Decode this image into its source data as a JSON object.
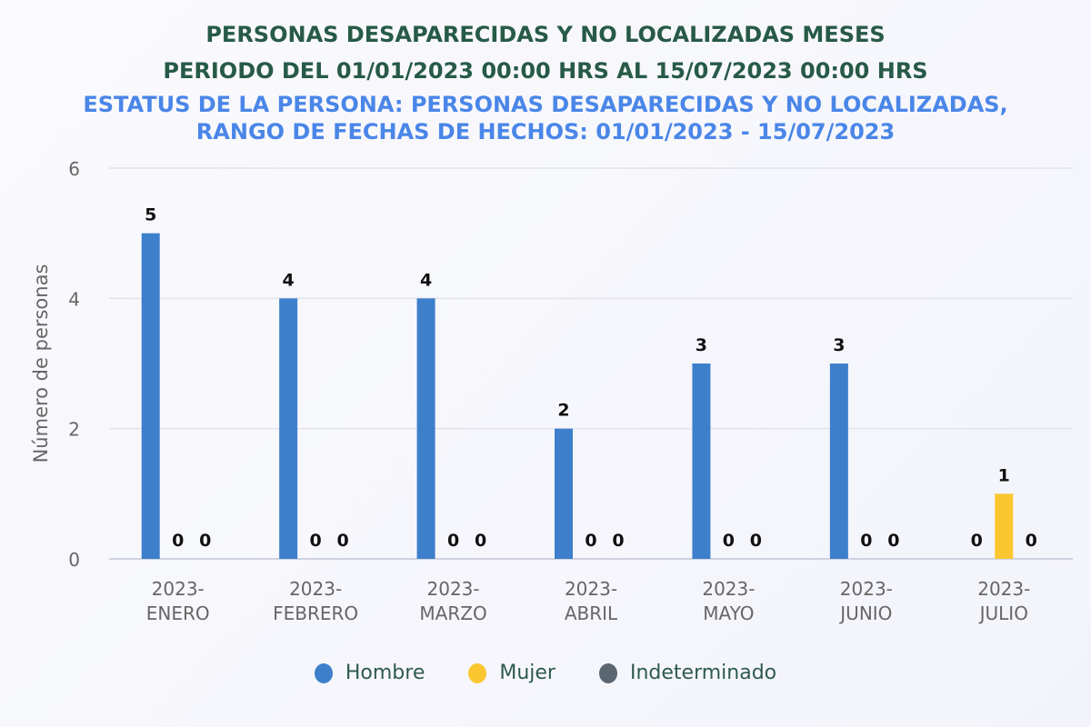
{
  "title_lines": [
    "PERSONAS DESAPARECIDAS Y NO LOCALIZADAS MESES",
    "PERIODO DEL 01/01/2023 00:00 HRS AL 15/07/2023 00:00 HRS"
  ],
  "subtitle_lines": [
    "ESTATUS DE LA PERSONA: PERSONAS DESAPARECIDAS Y NO LOCALIZADAS,",
    "RANGO DE FECHAS DE HECHOS: 01/01/2023 - 15/07/2023"
  ],
  "chart_data": {
    "type": "bar",
    "title": "PERSONAS DESAPARECIDAS Y NO LOCALIZADAS MESES",
    "ylabel": "Número de personas",
    "xlabel": "",
    "ylim": [
      0,
      6
    ],
    "yticks": [
      0,
      2,
      4,
      6
    ],
    "grid": true,
    "legend_placement": "bottom",
    "categories": [
      [
        "2023-",
        "ENERO"
      ],
      [
        "2023-",
        "FEBRERO"
      ],
      [
        "2023-",
        "MARZO"
      ],
      [
        "2023-",
        "ABRIL"
      ],
      [
        "2023-",
        "MAYO"
      ],
      [
        "2023-",
        "JUNIO"
      ],
      [
        "2023-",
        "JULIO"
      ]
    ],
    "series": [
      {
        "name": "Hombre",
        "color": "#3e7fcc",
        "values": [
          5,
          4,
          4,
          2,
          3,
          3,
          0
        ]
      },
      {
        "name": "Mujer",
        "color": "#fbc731",
        "values": [
          0,
          0,
          0,
          0,
          0,
          0,
          1
        ]
      },
      {
        "name": "Indeterminado",
        "color": "#5b6770",
        "values": [
          0,
          0,
          0,
          0,
          0,
          0,
          0
        ]
      }
    ]
  }
}
